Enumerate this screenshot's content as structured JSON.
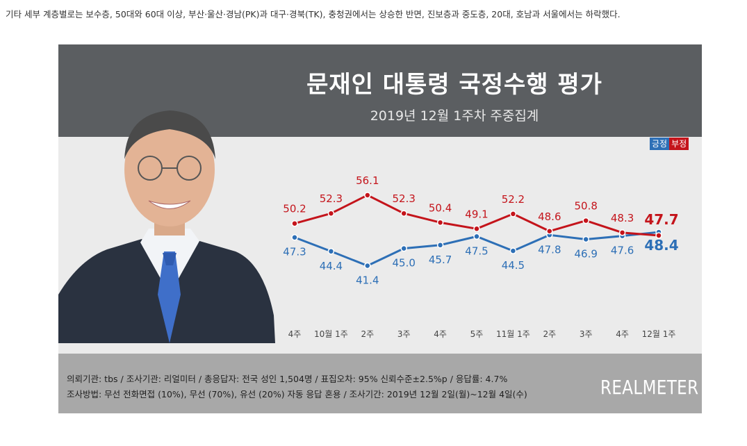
{
  "caption": "기타 세부 계층별로는 보수층, 50대와 60대 이상, 부산·울산·경남(PK)과 대구·경북(TK), 충청권에서는 상승한 반면, 진보층과 중도층, 20대, 호남과 서울에서는 하락했다.",
  "legend": {
    "positive": "긍정",
    "negative": "부정"
  },
  "colors": {
    "positive": "#2d6fb6",
    "negative": "#c4141b",
    "header_bg": "#5b5e61",
    "footer_bg": "#a8a8a8"
  },
  "footer": {
    "line1": "의뢰기관: tbs / 조사기관: 리얼미터 / 총응답자: 전국 성인 1,504명 / 표집오차: 95% 신뢰수준±2.5%p / 응답률: 4.7%",
    "line2": "조사방법: 무선 전화면접 (10%), 무선 (70%), 유선 (20%) 자동 응답 혼용 / 조사기간: 2019년 12월 2일(월)~12월 4일(수)",
    "brand": "REALMETER"
  },
  "chart_data": {
    "type": "line",
    "title": "문재인 대통령 국정수행 평가",
    "subtitle": "2019년 12월 1주차 주중집계",
    "categories": [
      "4주",
      "10월 1주",
      "2주",
      "3주",
      "4주",
      "5주",
      "11월 1주",
      "2주",
      "3주",
      "4주",
      "12월 1주"
    ],
    "series": [
      {
        "name": "긍정",
        "values": [
          47.3,
          44.4,
          41.4,
          45.0,
          45.7,
          47.5,
          44.5,
          47.8,
          46.9,
          47.6,
          48.4
        ]
      },
      {
        "name": "부정",
        "values": [
          50.2,
          52.3,
          56.1,
          52.3,
          50.4,
          49.1,
          52.2,
          48.6,
          50.8,
          48.3,
          47.7
        ]
      }
    ],
    "ylim": [
      38,
      60
    ],
    "grid": false,
    "legend_position": "top-right"
  }
}
